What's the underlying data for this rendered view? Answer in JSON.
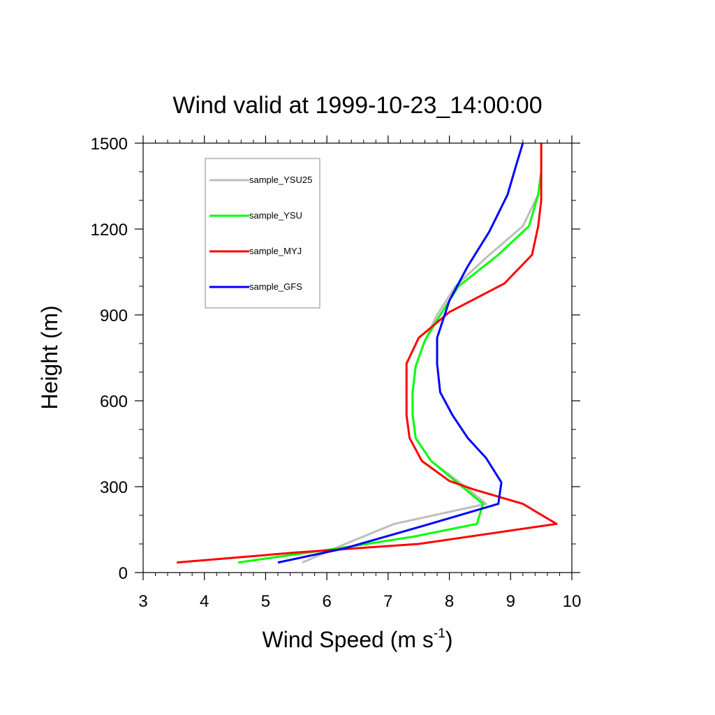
{
  "chart_data": {
    "type": "line",
    "title": "Wind valid at 1999-10-23_14:00:00",
    "xlabel": "Wind Speed (m s",
    "xlabel_sup": "-1",
    "xlabel_end": ")",
    "ylabel": "Height (m)",
    "xlim": [
      3,
      10
    ],
    "ylim": [
      0,
      1500
    ],
    "x_ticks": [
      3,
      4,
      5,
      6,
      7,
      8,
      9,
      10
    ],
    "y_ticks": [
      0,
      300,
      600,
      900,
      1200,
      1500
    ],
    "grid": false,
    "legend_position": "top-left",
    "series": [
      {
        "name": "sample_YSU25",
        "color": "#bebebe",
        "points": [
          [
            5.6,
            35
          ],
          [
            6.3,
            100
          ],
          [
            7.1,
            170
          ],
          [
            8.6,
            240
          ],
          [
            8.2,
            310
          ],
          [
            7.7,
            390
          ],
          [
            7.45,
            470
          ],
          [
            7.4,
            550
          ],
          [
            7.4,
            630
          ],
          [
            7.45,
            720
          ],
          [
            7.6,
            810
          ],
          [
            7.8,
            900
          ],
          [
            8.1,
            1000
          ],
          [
            8.6,
            1100
          ],
          [
            9.2,
            1210
          ],
          [
            9.45,
            1320
          ],
          [
            9.5,
            1400
          ],
          [
            9.5,
            1500
          ]
        ]
      },
      {
        "name": "sample_YSU",
        "color": "#00ff00",
        "points": [
          [
            4.55,
            35
          ],
          [
            6.2,
            85
          ],
          [
            7.4,
            125
          ],
          [
            8.45,
            170
          ],
          [
            8.55,
            240
          ],
          [
            8.15,
            310
          ],
          [
            7.7,
            390
          ],
          [
            7.45,
            470
          ],
          [
            7.4,
            550
          ],
          [
            7.4,
            630
          ],
          [
            7.45,
            720
          ],
          [
            7.6,
            810
          ],
          [
            7.85,
            900
          ],
          [
            8.15,
            1000
          ],
          [
            8.8,
            1110
          ],
          [
            9.3,
            1210
          ],
          [
            9.45,
            1320
          ],
          [
            9.5,
            1400
          ],
          [
            9.5,
            1500
          ]
        ]
      },
      {
        "name": "sample_MYJ",
        "color": "#ff0000",
        "points": [
          [
            3.55,
            35
          ],
          [
            5.5,
            70
          ],
          [
            7.5,
            100
          ],
          [
            9.75,
            170
          ],
          [
            9.2,
            240
          ],
          [
            8.4,
            290
          ],
          [
            8.0,
            320
          ],
          [
            7.55,
            390
          ],
          [
            7.35,
            470
          ],
          [
            7.3,
            550
          ],
          [
            7.3,
            630
          ],
          [
            7.3,
            730
          ],
          [
            7.5,
            820
          ],
          [
            8.0,
            910
          ],
          [
            8.9,
            1010
          ],
          [
            9.35,
            1110
          ],
          [
            9.45,
            1210
          ],
          [
            9.5,
            1300
          ],
          [
            9.5,
            1400
          ],
          [
            9.5,
            1500
          ]
        ]
      },
      {
        "name": "sample_GFS",
        "color": "#0000ff",
        "points": [
          [
            5.2,
            35
          ],
          [
            6.3,
            85
          ],
          [
            7.6,
            165
          ],
          [
            8.8,
            240
          ],
          [
            8.85,
            315
          ],
          [
            8.6,
            400
          ],
          [
            8.3,
            470
          ],
          [
            8.05,
            550
          ],
          [
            7.85,
            630
          ],
          [
            7.8,
            730
          ],
          [
            7.8,
            820
          ],
          [
            8.0,
            950
          ],
          [
            8.3,
            1070
          ],
          [
            8.65,
            1190
          ],
          [
            8.95,
            1320
          ],
          [
            9.1,
            1430
          ],
          [
            9.2,
            1500
          ]
        ]
      }
    ]
  }
}
